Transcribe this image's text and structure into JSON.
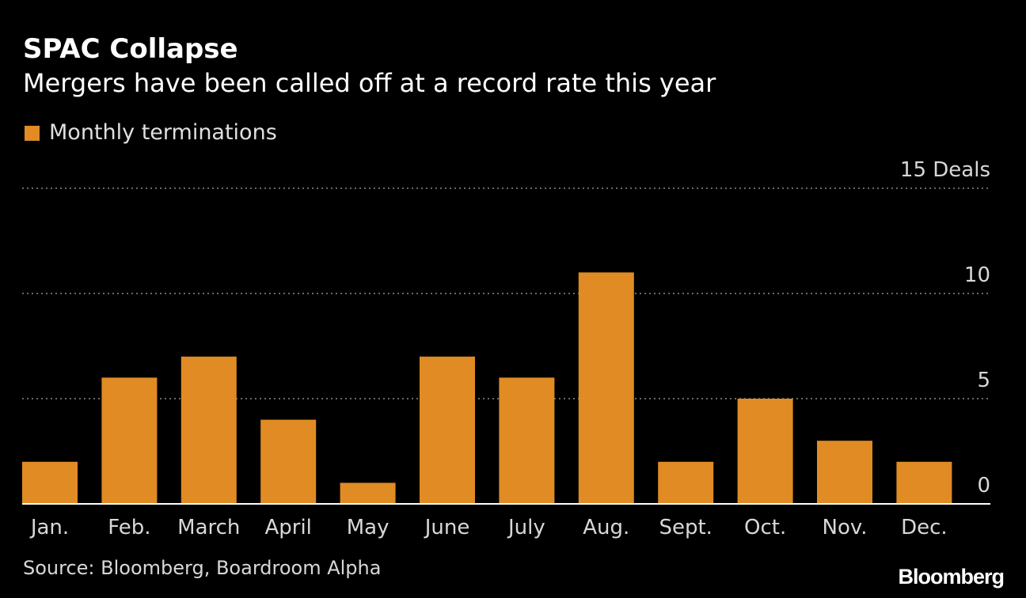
{
  "header": {
    "title": "SPAC Collapse",
    "subtitle": "Mergers have been called off at a record rate this year"
  },
  "legend": {
    "label": "Monthly terminations",
    "color": "#e08b24"
  },
  "chart_data": {
    "type": "bar",
    "categories": [
      "Jan.",
      "Feb.",
      "March",
      "April",
      "May",
      "June",
      "July",
      "Aug.",
      "Sept.",
      "Oct.",
      "Nov.",
      "Dec."
    ],
    "series": [
      {
        "name": "Monthly terminations",
        "values": [
          2,
          6,
          7,
          4,
          1,
          7,
          6,
          11,
          2,
          5,
          3,
          2
        ]
      }
    ],
    "ylim": [
      0,
      15
    ],
    "yticks": [
      0,
      5,
      10,
      15
    ],
    "ytick_labels": [
      "0",
      "5",
      "10",
      "15 Deals"
    ],
    "grid": true,
    "legend_position": "top-left",
    "bar_color": "#e08b24"
  },
  "footer": {
    "source": "Source: Bloomberg, Boardroom Alpha",
    "brand": "Bloomberg"
  }
}
